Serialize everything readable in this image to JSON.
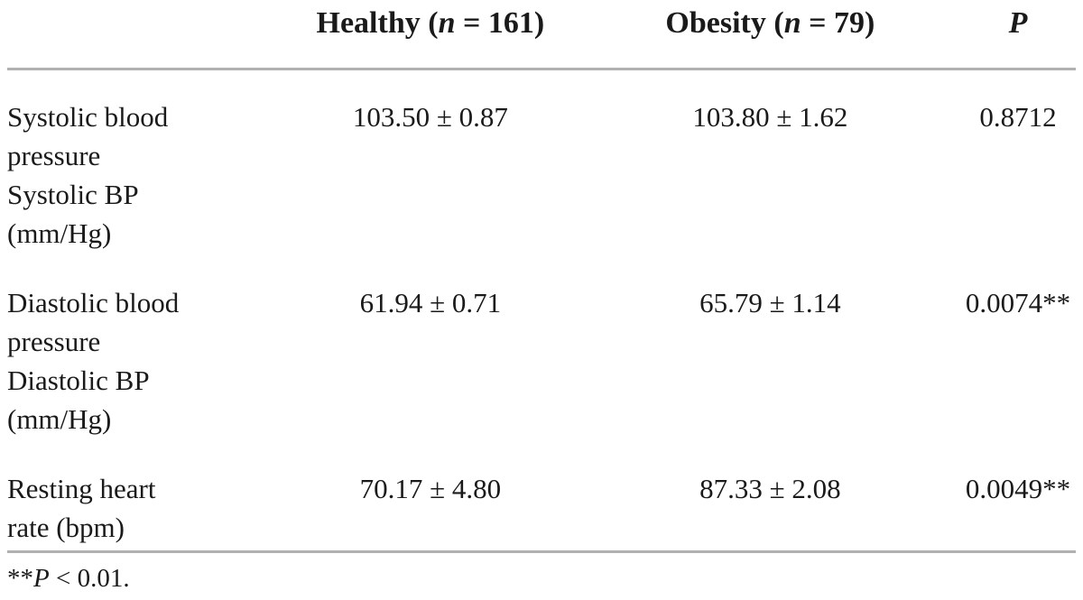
{
  "table": {
    "columns": {
      "healthy": {
        "prefix": "Healthy (",
        "n": "n",
        "suffix": " = 161)"
      },
      "obesity": {
        "prefix": "Obesity (",
        "n": "n",
        "suffix": " = 79)"
      },
      "p": "P"
    },
    "rows": [
      {
        "label_lines": [
          "Systolic blood",
          "pressure",
          "Systolic BP",
          "(mm/Hg)"
        ],
        "healthy": "103.50 ± 0.87",
        "obesity": "103.80 ± 1.62",
        "p": "0.8712"
      },
      {
        "label_lines": [
          "Diastolic blood",
          "pressure",
          "Diastolic BP",
          "(mm/Hg)"
        ],
        "healthy": "61.94 ± 0.71",
        "obesity": "65.79 ± 1.14",
        "p": "0.0074**"
      },
      {
        "label_lines": [
          "Resting heart",
          "rate (bpm)"
        ],
        "healthy": "70.17 ± 4.80",
        "obesity": "87.33 ± 2.08",
        "p": "0.0049**"
      }
    ],
    "footnote": {
      "stars": "**",
      "p": "P",
      "rest": " < 0.01."
    }
  },
  "colors": {
    "text": "#1a1a1a",
    "rule": "#b1b1b1",
    "background": "#ffffff"
  }
}
